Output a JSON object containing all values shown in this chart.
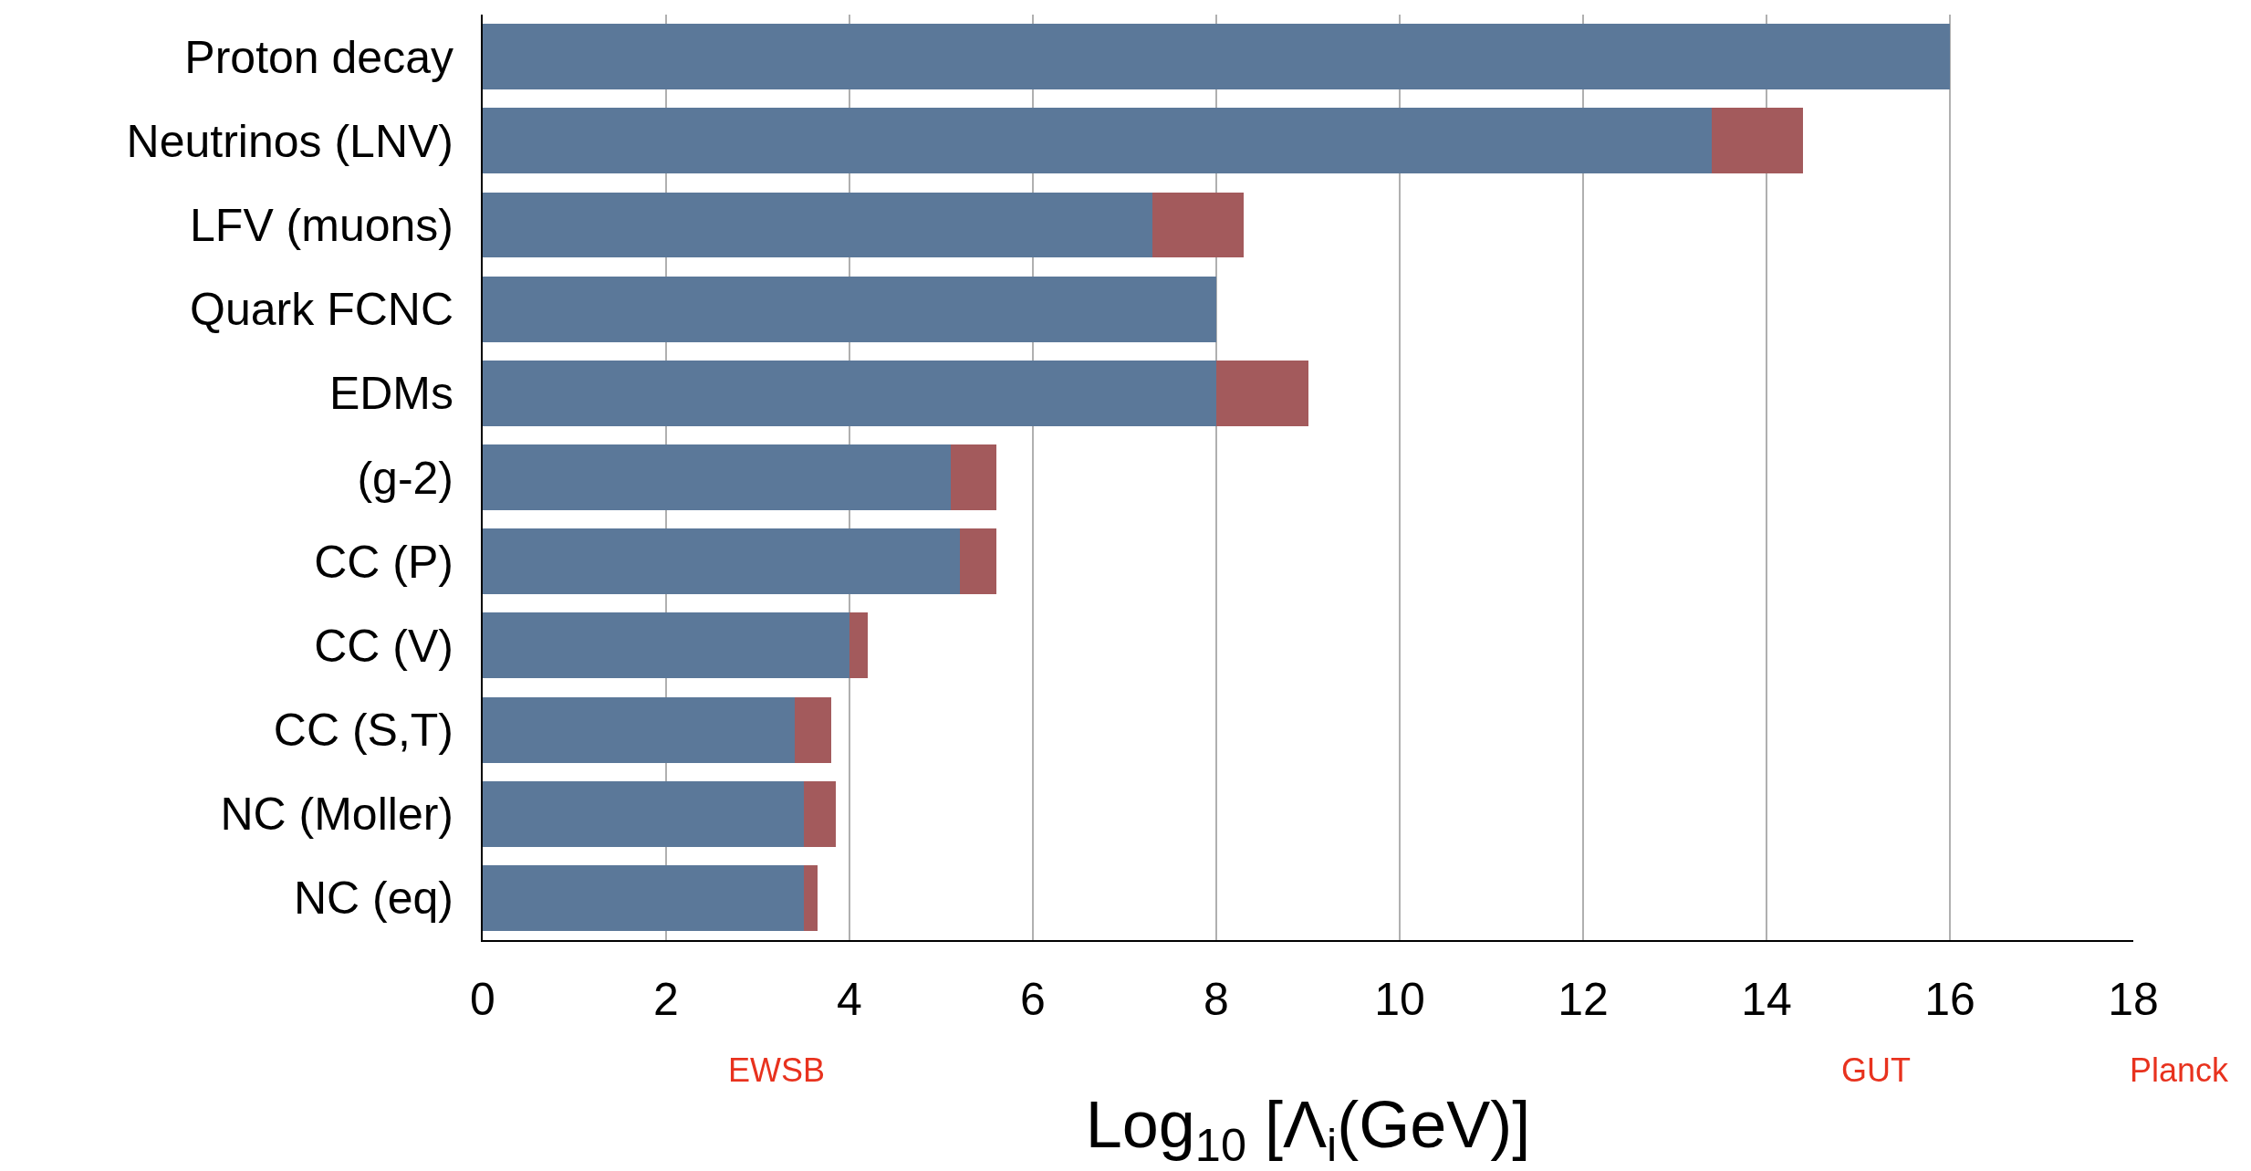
{
  "chart_data": {
    "type": "bar",
    "orientation": "horizontal",
    "stacked": true,
    "xlabel": "Log$_{10}$ [Λ$_{i}$(GeV)]",
    "categories": [
      "Proton decay",
      "Neutrinos (LNV)",
      "LFV (muons)",
      "Quark FCNC",
      "EDMs",
      "(g-2)",
      "CC (P)",
      "CC (V)",
      "CC (S,T)",
      "NC (Moller)",
      "NC (eq)"
    ],
    "series": [
      {
        "color": "#5b7899",
        "values": [
          16.0,
          13.4,
          7.3,
          8.0,
          8.0,
          5.1,
          5.2,
          4.0,
          3.4,
          3.5,
          3.5
        ]
      },
      {
        "color": "#a35a5c",
        "values": [
          null,
          1.0,
          1.0,
          null,
          1.0,
          0.5,
          0.4,
          0.2,
          0.4,
          0.35,
          0.15
        ]
      }
    ],
    "xlim": [
      0,
      18
    ],
    "xticks": [
      0,
      2,
      4,
      6,
      8,
      10,
      12,
      14,
      16,
      18
    ],
    "grid": "x",
    "annotations": [
      "EWSB",
      "GUT",
      "Planck"
    ]
  }
}
